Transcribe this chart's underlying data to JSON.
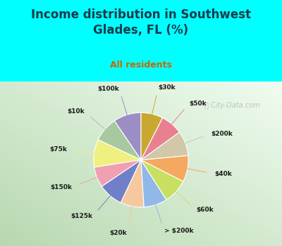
{
  "title": "Income distribution in Southwest\nGlades, FL (%)",
  "subtitle": "All residents",
  "labels": [
    "$100k",
    "$10k",
    "$75k",
    "$150k",
    "$125k",
    "$20k",
    "> $200k",
    "$60k",
    "$40k",
    "$200k",
    "$50k",
    "$30k"
  ],
  "sizes": [
    9.5,
    8.5,
    9.5,
    7.0,
    8.5,
    8.0,
    8.0,
    8.5,
    9.0,
    8.5,
    7.5,
    7.5
  ],
  "colors": [
    "#9b8ec4",
    "#a8c8a0",
    "#f0f080",
    "#f0a0b0",
    "#7080c8",
    "#f5c8a0",
    "#90b8e8",
    "#c8e060",
    "#f5a860",
    "#d0c8a8",
    "#e88090",
    "#c8a830"
  ],
  "bg_color": "#00ffff",
  "title_color": "#1a3a4a",
  "subtitle_color": "#cc6600",
  "label_color": "#1a1a1a",
  "startangle": 90,
  "watermark": "City-Data.com",
  "chart_bg_left": "#b8d8b0",
  "chart_bg_right": "#e8f0e8",
  "chart_bg_topleft": "#c8e8c0",
  "chart_bg_topright": "#f0f8f0"
}
